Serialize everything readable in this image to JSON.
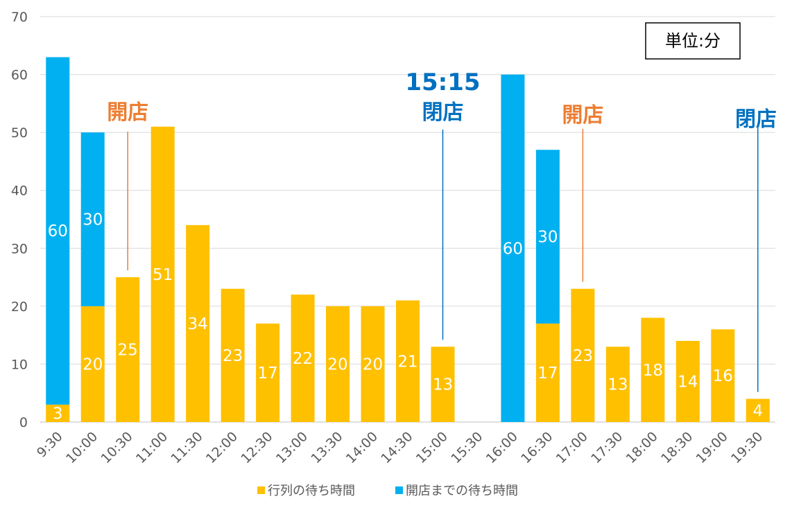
{
  "chart_data": {
    "type": "bar",
    "stacked": true,
    "categories": [
      "9:30",
      "10:00",
      "10:30",
      "11:00",
      "11:30",
      "12:00",
      "12:30",
      "13:00",
      "13:30",
      "14:00",
      "14:30",
      "15:00",
      "15:30",
      "16:00",
      "16:30",
      "17:00",
      "17:30",
      "18:00",
      "18:30",
      "19:00",
      "19:30"
    ],
    "series": [
      {
        "name": "行列の待ち時間",
        "color": "#FFC000",
        "values": [
          3,
          20,
          25,
          51,
          34,
          23,
          17,
          22,
          20,
          20,
          21,
          13,
          0,
          0,
          17,
          23,
          13,
          18,
          14,
          16,
          4
        ]
      },
      {
        "name": "開店までの待ち時間",
        "color": "#00B0F0",
        "values": [
          60,
          30,
          0,
          0,
          0,
          0,
          0,
          0,
          0,
          0,
          0,
          0,
          0,
          60,
          30,
          0,
          0,
          0,
          0,
          0,
          0
        ]
      }
    ],
    "ylim": [
      0,
      70
    ],
    "yticks": [
      0,
      10,
      20,
      30,
      40,
      50,
      60,
      70
    ],
    "grid": true,
    "legend_position": "bottom",
    "unit_box": "単位:分",
    "annotations": [
      {
        "category": "10:30",
        "lines": [
          "開店"
        ],
        "color": "#ED7D31",
        "value": 25
      },
      {
        "category": "15:00",
        "lines": [
          "15:15",
          "閉店"
        ],
        "color": "#0070C0",
        "value": 13
      },
      {
        "category": "17:00",
        "lines": [
          "開店"
        ],
        "color": "#ED7D31",
        "value": 23
      },
      {
        "category": "19:30",
        "lines": [
          "閉店"
        ],
        "color": "#0070C0",
        "value": 4
      }
    ]
  }
}
